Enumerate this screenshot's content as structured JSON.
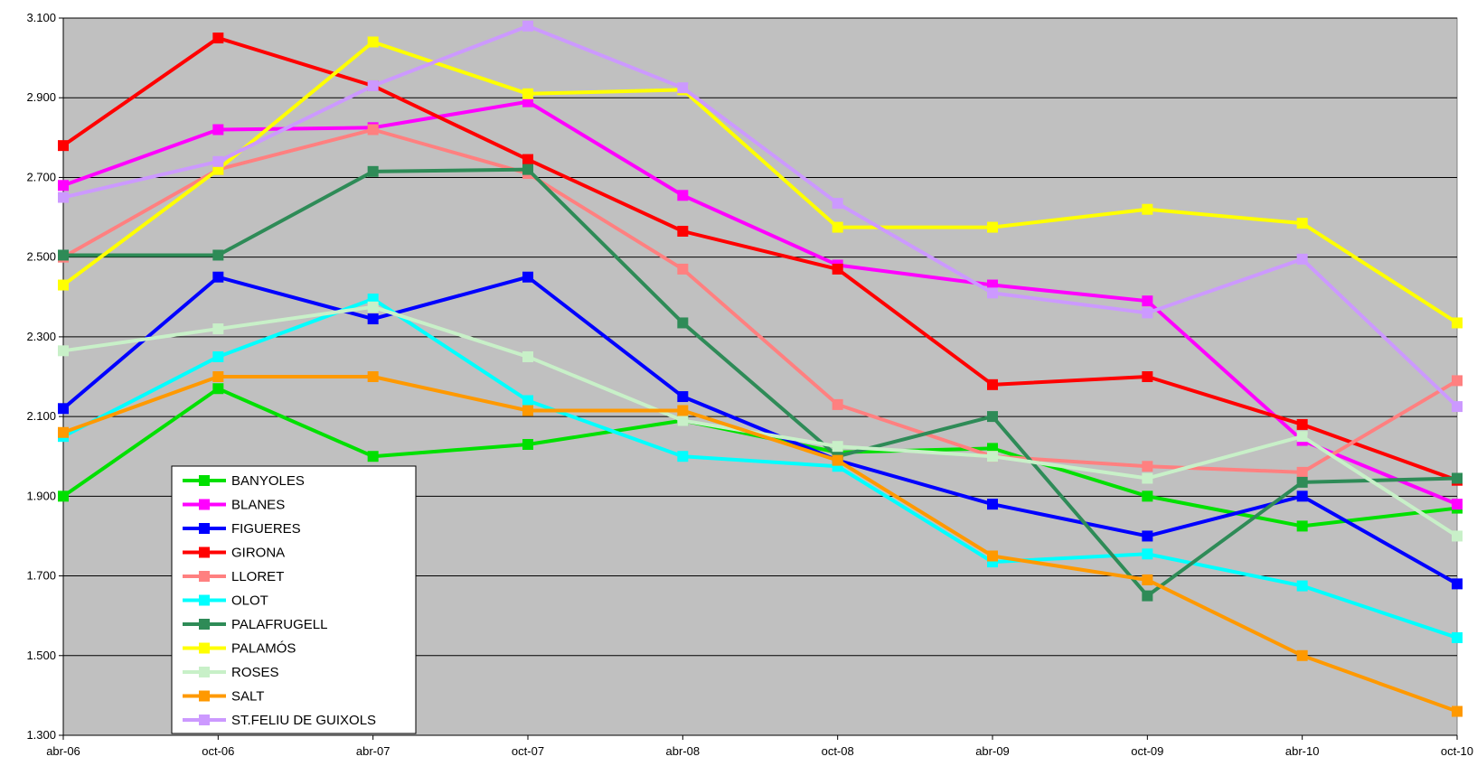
{
  "chart_data": {
    "type": "line",
    "title": "",
    "xlabel": "",
    "ylabel": "",
    "categories": [
      "abr-06",
      "oct-06",
      "abr-07",
      "oct-07",
      "abr-08",
      "oct-08",
      "abr-09",
      "oct-09",
      "abr-10",
      "oct-10"
    ],
    "ylim": [
      1300,
      3100
    ],
    "yticks": [
      1300,
      1500,
      1700,
      1900,
      2100,
      2300,
      2500,
      2700,
      2900,
      3100
    ],
    "ytick_labels": [
      "1.300",
      "1.500",
      "1.700",
      "1.900",
      "2.100",
      "2.300",
      "2.500",
      "2.700",
      "2.900",
      "3.100"
    ],
    "grid": "horizontal",
    "legend_position": "bottom-left",
    "plot_background": "#c0c0c0",
    "series": [
      {
        "name": "BANYOLES",
        "color": "#00e000",
        "values": [
          1900,
          2170,
          2000,
          2030,
          2090,
          2010,
          2020,
          1900,
          1825,
          1870
        ]
      },
      {
        "name": "BLANES",
        "color": "#ff00ff",
        "values": [
          2680,
          2820,
          2825,
          2890,
          2655,
          2480,
          2430,
          2390,
          2040,
          1880
        ]
      },
      {
        "name": "FIGUERES",
        "color": "#0000ff",
        "values": [
          2120,
          2450,
          2345,
          2450,
          2150,
          1990,
          1880,
          1800,
          1900,
          1680
        ]
      },
      {
        "name": "GIRONA",
        "color": "#ff0000",
        "values": [
          2780,
          3050,
          2930,
          2745,
          2565,
          2470,
          2180,
          2200,
          2080,
          1940
        ]
      },
      {
        "name": "LLORET",
        "color": "#ff8080",
        "values": [
          2500,
          2720,
          2820,
          2710,
          2470,
          2130,
          2000,
          1975,
          1960,
          2190
        ]
      },
      {
        "name": "OLOT",
        "color": "#00ffff",
        "values": [
          2050,
          2250,
          2395,
          2140,
          2000,
          1975,
          1735,
          1755,
          1675,
          1545
        ]
      },
      {
        "name": "PALAFRUGELL",
        "color": "#2e8b57",
        "values": [
          2505,
          2505,
          2715,
          2720,
          2335,
          2000,
          2100,
          1650,
          1935,
          1945
        ]
      },
      {
        "name": "PALAMÓS",
        "color": "#ffff00",
        "values": [
          2430,
          2720,
          3040,
          2910,
          2920,
          2575,
          2575,
          2620,
          2585,
          2335
        ]
      },
      {
        "name": "ROSES",
        "color": "#c8f0c8",
        "values": [
          2265,
          2320,
          2375,
          2250,
          2090,
          2025,
          2000,
          1945,
          2050,
          1800
        ]
      },
      {
        "name": "SALT",
        "color": "#ff9900",
        "values": [
          2060,
          2200,
          2200,
          2115,
          2115,
          1990,
          1750,
          1690,
          1500,
          1360
        ]
      },
      {
        "name": "ST.FELIU DE GUIXOLS",
        "color": "#cc99ff",
        "values": [
          2650,
          2740,
          2930,
          3080,
          2925,
          2635,
          2410,
          2360,
          2495,
          2125
        ]
      }
    ]
  }
}
